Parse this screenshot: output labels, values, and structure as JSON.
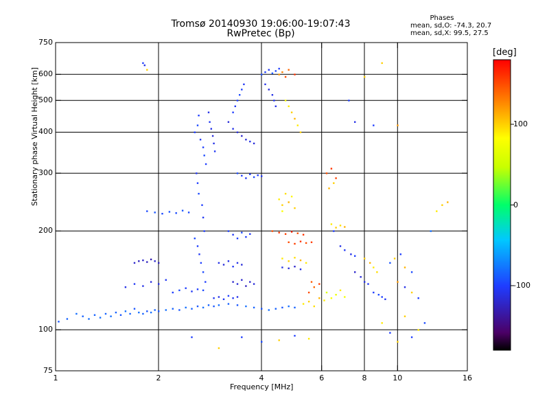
{
  "header": {
    "title_line1": "Tromsø 20140930 19:06:00-19:07:43",
    "title_line2": "RwPretec (Bp)"
  },
  "info": {
    "title": "Phases",
    "line1": "mean, sd,O: -74.3, 20.7",
    "line2": "mean, sd,X:  99.5, 27.5"
  },
  "colorbar": {
    "title": "[deg]",
    "range": [
      -180,
      180
    ],
    "ticks": [
      {
        "value": 100,
        "label": "100"
      },
      {
        "value": 0,
        "label": "0"
      },
      {
        "value": -100,
        "label": "-100"
      }
    ]
  },
  "chart_data": {
    "type": "scatter",
    "xlabel": "Frequency [MHz]",
    "ylabel": "Stationary phase Virtual Height [km]",
    "xscale": "log",
    "yscale": "log",
    "xlim": [
      1,
      16
    ],
    "ylim": [
      75,
      750
    ],
    "grid": true,
    "x_ticks": [
      {
        "value": 1,
        "label": "1"
      },
      {
        "value": 2,
        "label": "2"
      },
      {
        "value": 4,
        "label": "4"
      },
      {
        "value": 6,
        "label": "6"
      },
      {
        "value": 8,
        "label": "8"
      },
      {
        "value": 10,
        "label": "10"
      },
      {
        "value": 16,
        "label": "16"
      }
    ],
    "y_ticks": [
      {
        "value": 75,
        "label": "75"
      },
      {
        "value": 100,
        "label": "100"
      },
      {
        "value": 200,
        "label": "200"
      },
      {
        "value": 300,
        "label": "300"
      },
      {
        "value": 400,
        "label": "400"
      },
      {
        "value": 500,
        "label": "500"
      },
      {
        "value": 600,
        "label": "600"
      },
      {
        "value": 750,
        "label": "750"
      }
    ],
    "x_gridlines": [
      2,
      4,
      6,
      8,
      10
    ],
    "y_gridlines": [
      100,
      200,
      300,
      400,
      500,
      600
    ],
    "points": [
      [
        1.02,
        106,
        -90
      ],
      [
        1.08,
        108,
        -85
      ],
      [
        1.15,
        112,
        -80
      ],
      [
        1.2,
        110,
        -85
      ],
      [
        1.25,
        108,
        -80
      ],
      [
        1.3,
        111,
        -85
      ],
      [
        1.35,
        109,
        -80
      ],
      [
        1.4,
        112,
        -85
      ],
      [
        1.45,
        110,
        -80
      ],
      [
        1.5,
        113,
        -85
      ],
      [
        1.55,
        111,
        -90
      ],
      [
        1.6,
        114,
        -80
      ],
      [
        1.65,
        112,
        -85
      ],
      [
        1.7,
        116,
        -90
      ],
      [
        1.75,
        113,
        -80
      ],
      [
        1.8,
        112,
        -85
      ],
      [
        1.85,
        114,
        -90
      ],
      [
        1.9,
        113,
        -80
      ],
      [
        1.95,
        115,
        -85
      ],
      [
        2.0,
        114,
        -90
      ],
      [
        2.1,
        115,
        -80
      ],
      [
        2.2,
        116,
        -85
      ],
      [
        2.3,
        115,
        -90
      ],
      [
        2.4,
        117,
        -80
      ],
      [
        2.5,
        116,
        -85
      ],
      [
        2.6,
        118,
        -90
      ],
      [
        2.7,
        117,
        -80
      ],
      [
        2.8,
        119,
        -85
      ],
      [
        2.9,
        118,
        -90
      ],
      [
        3.0,
        119,
        -80
      ],
      [
        3.2,
        120,
        -85
      ],
      [
        3.4,
        119,
        -90
      ],
      [
        3.6,
        118,
        -80
      ],
      [
        3.8,
        117,
        -85
      ],
      [
        4.0,
        116,
        -90
      ],
      [
        4.2,
        115,
        -80
      ],
      [
        4.4,
        116,
        -85
      ],
      [
        4.6,
        117,
        -90
      ],
      [
        4.8,
        118,
        -80
      ],
      [
        5.0,
        117,
        -85
      ],
      [
        1.6,
        135,
        -110
      ],
      [
        1.7,
        138,
        -105
      ],
      [
        1.8,
        136,
        -110
      ],
      [
        1.9,
        140,
        -115
      ],
      [
        2.0,
        138,
        -110
      ],
      [
        2.1,
        142,
        -105
      ],
      [
        2.2,
        130,
        -100
      ],
      [
        2.3,
        132,
        -95
      ],
      [
        2.4,
        134,
        -100
      ],
      [
        2.5,
        131,
        -105
      ],
      [
        2.6,
        133,
        -100
      ],
      [
        2.7,
        132,
        -95
      ],
      [
        1.7,
        160,
        -120
      ],
      [
        1.75,
        162,
        -125
      ],
      [
        1.8,
        163,
        -120
      ],
      [
        1.85,
        161,
        -125
      ],
      [
        1.9,
        164,
        -130
      ],
      [
        1.95,
        162,
        -120
      ],
      [
        2.0,
        160,
        -125
      ],
      [
        1.85,
        230,
        -95
      ],
      [
        1.95,
        228,
        -90
      ],
      [
        2.05,
        226,
        -95
      ],
      [
        2.15,
        229,
        -90
      ],
      [
        2.25,
        227,
        -95
      ],
      [
        2.35,
        231,
        -90
      ],
      [
        2.45,
        228,
        -95
      ],
      [
        2.55,
        400,
        -100
      ],
      [
        2.6,
        420,
        -95
      ],
      [
        2.62,
        450,
        -100
      ],
      [
        2.65,
        380,
        -105
      ],
      [
        2.7,
        360,
        -100
      ],
      [
        2.72,
        340,
        -95
      ],
      [
        2.75,
        320,
        -100
      ],
      [
        2.58,
        300,
        -105
      ],
      [
        2.6,
        280,
        -100
      ],
      [
        2.62,
        260,
        -95
      ],
      [
        2.68,
        240,
        -100
      ],
      [
        2.7,
        220,
        -105
      ],
      [
        2.72,
        200,
        -100
      ],
      [
        2.55,
        190,
        -95
      ],
      [
        2.6,
        180,
        -100
      ],
      [
        2.63,
        170,
        -105
      ],
      [
        2.66,
        160,
        -100
      ],
      [
        2.7,
        150,
        -95
      ],
      [
        2.74,
        140,
        -100
      ],
      [
        2.8,
        460,
        -110
      ],
      [
        2.82,
        430,
        -105
      ],
      [
        2.85,
        410,
        -110
      ],
      [
        2.88,
        390,
        -115
      ],
      [
        2.9,
        370,
        -110
      ],
      [
        2.92,
        350,
        -105
      ],
      [
        3.2,
        430,
        -115
      ],
      [
        3.3,
        410,
        -110
      ],
      [
        3.4,
        400,
        -115
      ],
      [
        3.5,
        390,
        -120
      ],
      [
        3.6,
        380,
        -115
      ],
      [
        3.7,
        375,
        -110
      ],
      [
        3.8,
        370,
        -115
      ],
      [
        3.3,
        460,
        -100
      ],
      [
        3.35,
        480,
        -105
      ],
      [
        3.4,
        500,
        -100
      ],
      [
        3.45,
        520,
        -95
      ],
      [
        3.5,
        540,
        -100
      ],
      [
        3.55,
        560,
        -105
      ],
      [
        3.4,
        300,
        -95
      ],
      [
        3.5,
        295,
        -100
      ],
      [
        3.6,
        290,
        -105
      ],
      [
        3.7,
        298,
        -100
      ],
      [
        3.8,
        292,
        -95
      ],
      [
        3.9,
        296,
        -100
      ],
      [
        4.0,
        294,
        -105
      ],
      [
        3.2,
        200,
        -100
      ],
      [
        3.3,
        195,
        -105
      ],
      [
        3.4,
        190,
        -100
      ],
      [
        3.5,
        198,
        -95
      ],
      [
        3.6,
        192,
        -100
      ],
      [
        3.7,
        196,
        -105
      ],
      [
        3.0,
        160,
        -110
      ],
      [
        3.1,
        158,
        -115
      ],
      [
        3.2,
        162,
        -110
      ],
      [
        3.3,
        156,
        -105
      ],
      [
        3.4,
        160,
        -110
      ],
      [
        3.5,
        158,
        -115
      ],
      [
        3.3,
        140,
        -120
      ],
      [
        3.4,
        138,
        -115
      ],
      [
        3.5,
        142,
        -120
      ],
      [
        3.6,
        136,
        -125
      ],
      [
        3.7,
        140,
        -120
      ],
      [
        3.8,
        138,
        -115
      ],
      [
        2.9,
        125,
        -105
      ],
      [
        3.0,
        126,
        -110
      ],
      [
        3.1,
        124,
        -105
      ],
      [
        3.2,
        127,
        -100
      ],
      [
        3.3,
        125,
        -105
      ],
      [
        3.4,
        126,
        -110
      ],
      [
        4.0,
        600,
        -95
      ],
      [
        4.1,
        610,
        -100
      ],
      [
        4.2,
        620,
        -105
      ],
      [
        4.3,
        605,
        -90
      ],
      [
        4.4,
        615,
        -95
      ],
      [
        4.5,
        625,
        -100
      ],
      [
        4.1,
        560,
        -110
      ],
      [
        4.2,
        540,
        -115
      ],
      [
        4.3,
        520,
        -110
      ],
      [
        4.35,
        500,
        -105
      ],
      [
        4.4,
        480,
        -110
      ],
      [
        4.5,
        600,
        120
      ],
      [
        4.6,
        610,
        130
      ],
      [
        4.7,
        590,
        150
      ],
      [
        4.8,
        620,
        140
      ],
      [
        5.0,
        600,
        160
      ],
      [
        4.7,
        500,
        80
      ],
      [
        4.8,
        480,
        90
      ],
      [
        4.9,
        460,
        100
      ],
      [
        5.0,
        440,
        110
      ],
      [
        5.1,
        420,
        90
      ],
      [
        5.2,
        400,
        100
      ],
      [
        4.5,
        250,
        90
      ],
      [
        4.6,
        240,
        100
      ],
      [
        4.7,
        260,
        95
      ],
      [
        4.8,
        245,
        110
      ],
      [
        4.9,
        255,
        85
      ],
      [
        5.0,
        235,
        100
      ],
      [
        4.6,
        230,
        80
      ],
      [
        4.3,
        200,
        150
      ],
      [
        4.5,
        198,
        160
      ],
      [
        4.7,
        196,
        155
      ],
      [
        4.9,
        199,
        165
      ],
      [
        5.1,
        197,
        150
      ],
      [
        5.3,
        195,
        160
      ],
      [
        4.8,
        185,
        150
      ],
      [
        5.0,
        183,
        155
      ],
      [
        5.2,
        186,
        160
      ],
      [
        5.4,
        184,
        150
      ],
      [
        5.6,
        185,
        155
      ],
      [
        4.6,
        165,
        90
      ],
      [
        4.8,
        162,
        100
      ],
      [
        5.0,
        166,
        95
      ],
      [
        5.2,
        163,
        110
      ],
      [
        5.4,
        160,
        90
      ],
      [
        4.6,
        155,
        -110
      ],
      [
        4.8,
        154,
        -115
      ],
      [
        5.0,
        156,
        -120
      ],
      [
        5.2,
        153,
        -110
      ],
      [
        5.5,
        130,
        150
      ],
      [
        5.7,
        135,
        140
      ],
      [
        5.9,
        138,
        155
      ],
      [
        5.6,
        140,
        145
      ],
      [
        5.3,
        120,
        90
      ],
      [
        5.5,
        122,
        100
      ],
      [
        5.7,
        118,
        95
      ],
      [
        5.9,
        125,
        110
      ],
      [
        6.1,
        123,
        90
      ],
      [
        6.2,
        300,
        150
      ],
      [
        6.4,
        310,
        160
      ],
      [
        6.6,
        290,
        155
      ],
      [
        6.5,
        280,
        100
      ],
      [
        6.3,
        270,
        110
      ],
      [
        6.4,
        210,
        90
      ],
      [
        6.6,
        205,
        100
      ],
      [
        6.8,
        208,
        95
      ],
      [
        7.0,
        206,
        110
      ],
      [
        6.5,
        200,
        -100
      ],
      [
        6.2,
        130,
        60
      ],
      [
        6.4,
        125,
        80
      ],
      [
        6.6,
        128,
        70
      ],
      [
        6.8,
        132,
        90
      ],
      [
        7.0,
        126,
        75
      ],
      [
        6.8,
        180,
        -110
      ],
      [
        7.0,
        175,
        -105
      ],
      [
        7.3,
        170,
        -110
      ],
      [
        7.5,
        168,
        -100
      ],
      [
        7.5,
        150,
        -120
      ],
      [
        7.8,
        145,
        -115
      ],
      [
        8.0,
        140,
        -110
      ],
      [
        8.2,
        138,
        -105
      ],
      [
        8.0,
        165,
        100
      ],
      [
        8.3,
        160,
        110
      ],
      [
        8.5,
        155,
        90
      ],
      [
        8.7,
        150,
        95
      ],
      [
        8.5,
        130,
        -100
      ],
      [
        8.8,
        128,
        -95
      ],
      [
        9.0,
        126,
        -100
      ],
      [
        9.2,
        124,
        -105
      ],
      [
        9.5,
        160,
        -90
      ],
      [
        9.8,
        165,
        100
      ],
      [
        10.2,
        170,
        -100
      ],
      [
        10.5,
        155,
        110
      ],
      [
        11.0,
        150,
        -95
      ],
      [
        10.0,
        140,
        120
      ],
      [
        10.5,
        135,
        -110
      ],
      [
        11.0,
        130,
        100
      ],
      [
        11.5,
        125,
        -100
      ],
      [
        10.5,
        110,
        100
      ],
      [
        11.0,
        95,
        -100
      ],
      [
        11.5,
        100,
        90
      ],
      [
        12.0,
        105,
        -95
      ],
      [
        9.0,
        105,
        90
      ],
      [
        9.5,
        98,
        -100
      ],
      [
        10.0,
        92,
        100
      ],
      [
        12.5,
        200,
        -80
      ],
      [
        13.0,
        230,
        90
      ],
      [
        13.5,
        240,
        100
      ],
      [
        14.0,
        245,
        110
      ],
      [
        7.2,
        500,
        -100
      ],
      [
        7.5,
        430,
        -110
      ],
      [
        8.0,
        590,
        100
      ],
      [
        8.5,
        420,
        -100
      ],
      [
        9.0,
        650,
        100
      ],
      [
        10.0,
        420,
        120
      ],
      [
        1.8,
        650,
        -100
      ],
      [
        1.82,
        640,
        -110
      ],
      [
        1.85,
        620,
        100
      ],
      [
        3.5,
        95,
        -100
      ],
      [
        4.0,
        92,
        -95
      ],
      [
        4.5,
        93,
        100
      ],
      [
        5.0,
        96,
        -100
      ],
      [
        5.5,
        94,
        90
      ],
      [
        2.5,
        95,
        -100
      ],
      [
        3.0,
        88,
        100
      ]
    ]
  }
}
